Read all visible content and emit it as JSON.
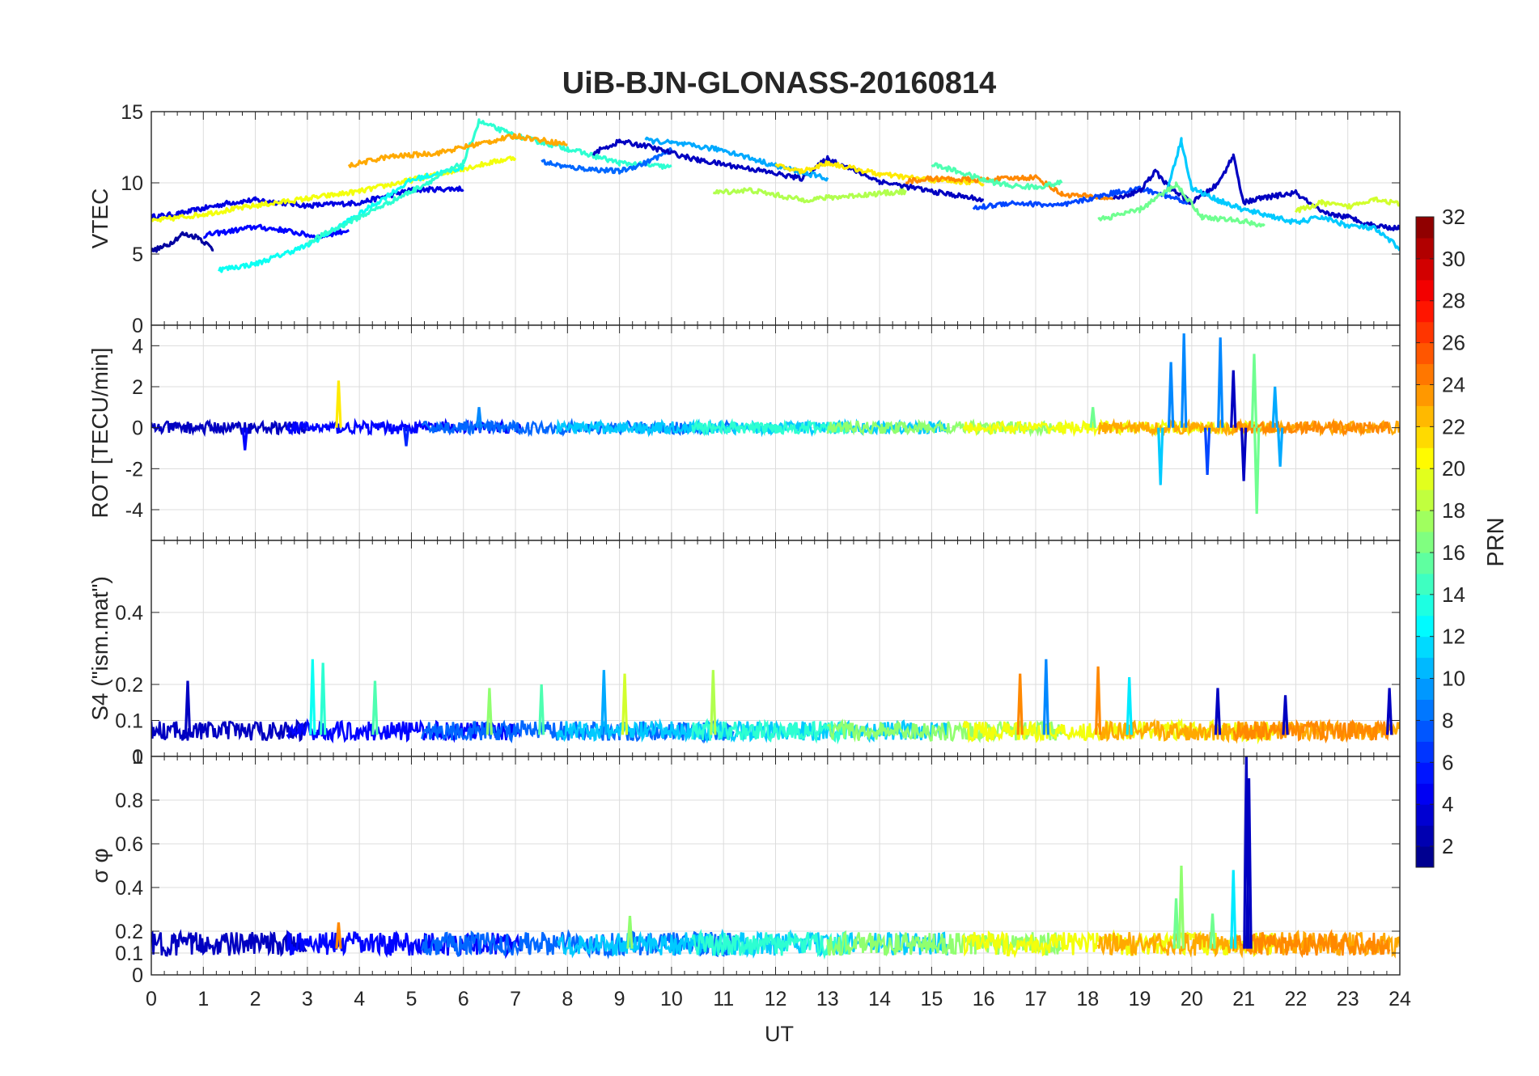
{
  "title": "UiB-BJN-GLONASS-20160814",
  "chart_data": [
    {
      "type": "line",
      "panel": "vtec",
      "ylabel": "VTEC",
      "ylim": [
        0,
        15
      ],
      "yticks": [
        0,
        5,
        10,
        15
      ],
      "xlim": [
        0,
        24
      ],
      "grid": true,
      "series": [
        {
          "color_value": 4,
          "x": [
            0,
            0.5,
            1,
            1.5,
            2,
            3,
            4,
            5,
            6
          ],
          "y": [
            7.6,
            7.8,
            8.2,
            8.6,
            8.8,
            8.4,
            8.6,
            9.5,
            9.6
          ]
        },
        {
          "color_value": 2,
          "x": [
            0,
            0.3,
            0.6,
            0.9,
            1.2
          ],
          "y": [
            5.2,
            5.6,
            6.4,
            6.2,
            5.3
          ]
        },
        {
          "color_value": 5,
          "x": [
            1,
            2,
            2.5,
            3.2,
            3.8
          ],
          "y": [
            6.3,
            6.9,
            6.7,
            6.2,
            6.7
          ]
        },
        {
          "color_value": 20,
          "x": [
            0,
            1,
            2,
            3,
            4,
            5,
            6,
            7
          ],
          "y": [
            7.3,
            7.8,
            8.4,
            8.9,
            9.4,
            10.2,
            11.0,
            11.8
          ]
        },
        {
          "color_value": 13,
          "x": [
            1.3,
            2,
            3,
            4,
            5,
            6
          ],
          "y": [
            3.9,
            4.3,
            5.6,
            7.8,
            10.2,
            11.1
          ]
        },
        {
          "color_value": 14,
          "x": [
            3,
            4,
            5,
            6,
            6.3,
            7,
            8,
            9,
            10
          ],
          "y": [
            5.8,
            7.6,
            9.4,
            11.4,
            14.3,
            13.3,
            12.4,
            11.4,
            11.1
          ]
        },
        {
          "color_value": 23,
          "x": [
            3.8,
            4.5,
            5.5,
            6.5,
            7,
            8
          ],
          "y": [
            11.2,
            11.8,
            12.1,
            12.9,
            13.3,
            12.7
          ]
        },
        {
          "color_value": 8,
          "x": [
            7.5,
            8,
            9,
            9.5,
            10
          ],
          "y": [
            11.5,
            11.1,
            10.8,
            11.4,
            12.3
          ]
        },
        {
          "color_value": 3,
          "x": [
            8.5,
            9,
            9.5,
            10.5,
            11.5,
            12.5,
            13,
            14,
            15,
            16
          ],
          "y": [
            12.1,
            12.9,
            12.6,
            11.6,
            11.0,
            10.3,
            11.7,
            10.1,
            9.4,
            8.8
          ]
        },
        {
          "color_value": 10,
          "x": [
            9.5,
            10,
            11,
            12,
            13
          ],
          "y": [
            13.0,
            12.8,
            12.3,
            11.2,
            10.3
          ]
        },
        {
          "color_value": 18,
          "x": [
            10.8,
            11.5,
            12.5,
            13.5,
            14.5
          ],
          "y": [
            9.3,
            9.5,
            8.8,
            9.1,
            9.4
          ]
        },
        {
          "color_value": 21,
          "x": [
            12,
            12.5,
            13,
            14,
            15,
            16
          ],
          "y": [
            11.2,
            10.8,
            11.4,
            10.6,
            10.2,
            10.0
          ]
        },
        {
          "color_value": 24,
          "x": [
            14.5,
            15,
            16,
            17,
            17.5,
            18.5
          ],
          "y": [
            10.1,
            10.3,
            10.2,
            10.4,
            9.2,
            8.9
          ]
        },
        {
          "color_value": 15,
          "x": [
            15,
            15.5,
            16,
            16.5,
            17,
            17.5
          ],
          "y": [
            11.3,
            10.8,
            10.2,
            9.8,
            9.7,
            10.0
          ]
        },
        {
          "color_value": 7,
          "x": [
            15.8,
            16.5,
            17.5,
            18.5,
            19,
            20
          ],
          "y": [
            8.2,
            8.6,
            8.4,
            9.3,
            9.6,
            8.6
          ]
        },
        {
          "color_value": 3,
          "x": [
            18.5,
            19,
            19.3,
            19.6,
            20,
            20.5,
            20.8,
            21,
            21.3,
            22,
            22.5,
            23,
            23.5,
            24
          ],
          "y": [
            8.9,
            9.4,
            10.8,
            9.6,
            8.6,
            9.9,
            11.9,
            8.6,
            8.9,
            9.3,
            7.9,
            7.6,
            7.0,
            6.8
          ]
        },
        {
          "color_value": 11,
          "x": [
            19.5,
            19.8,
            20,
            20.5,
            21,
            21.5,
            22,
            22.5,
            23,
            23.5,
            24
          ],
          "y": [
            9.2,
            13.0,
            9.6,
            8.8,
            8.1,
            7.7,
            7.2,
            7.6,
            7.0,
            6.8,
            5.4
          ]
        },
        {
          "color_value": 16,
          "x": [
            18.2,
            19,
            19.7,
            20.2,
            21,
            21.4
          ],
          "y": [
            7.4,
            8.1,
            9.9,
            7.6,
            7.3,
            7.0
          ]
        },
        {
          "color_value": 19,
          "x": [
            22,
            22.5,
            23,
            23.5,
            24
          ],
          "y": [
            8.0,
            8.6,
            8.3,
            8.9,
            8.5
          ]
        }
      ]
    },
    {
      "type": "line",
      "panel": "rot",
      "ylabel": "ROT [TECU/min]",
      "ylim": [
        -5.5,
        5
      ],
      "yticks": [
        -4,
        -2,
        0,
        2,
        4
      ],
      "xlim": [
        0,
        24
      ],
      "grid": true,
      "noise_amplitude": 0.3,
      "spikes": [
        {
          "x": 1.8,
          "y": -1.1,
          "color_value": 5
        },
        {
          "x": 3.6,
          "y": 2.3,
          "color_value": 21
        },
        {
          "x": 4.9,
          "y": -0.9,
          "color_value": 6
        },
        {
          "x": 6.3,
          "y": 1.0,
          "color_value": 9
        },
        {
          "x": 18.1,
          "y": 1.0,
          "color_value": 16
        },
        {
          "x": 19.4,
          "y": -2.8,
          "color_value": 11
        },
        {
          "x": 19.6,
          "y": 3.2,
          "color_value": 9
        },
        {
          "x": 19.85,
          "y": 4.6,
          "color_value": 9
        },
        {
          "x": 20.3,
          "y": -2.3,
          "color_value": 7
        },
        {
          "x": 20.55,
          "y": 4.4,
          "color_value": 9
        },
        {
          "x": 20.8,
          "y": 2.8,
          "color_value": 3
        },
        {
          "x": 21.0,
          "y": -2.6,
          "color_value": 3
        },
        {
          "x": 21.2,
          "y": 3.6,
          "color_value": 16
        },
        {
          "x": 21.25,
          "y": -4.2,
          "color_value": 16
        },
        {
          "x": 21.6,
          "y": 2.0,
          "color_value": 10
        },
        {
          "x": 21.7,
          "y": -1.9,
          "color_value": 10
        }
      ]
    },
    {
      "type": "line",
      "panel": "s4",
      "ylabel": "S4 (\"ism.mat\")",
      "ylim": [
        0,
        0.6
      ],
      "yticks": [
        0,
        0.1,
        0.2,
        0.4
      ],
      "xlim": [
        0,
        24
      ],
      "grid": true,
      "baseline": 0.06,
      "spikes": [
        {
          "x": 0.7,
          "y": 0.21,
          "color_value": 3
        },
        {
          "x": 3.1,
          "y": 0.27,
          "color_value": 13
        },
        {
          "x": 3.3,
          "y": 0.26,
          "color_value": 14
        },
        {
          "x": 4.3,
          "y": 0.21,
          "color_value": 15
        },
        {
          "x": 6.5,
          "y": 0.19,
          "color_value": 17
        },
        {
          "x": 7.5,
          "y": 0.2,
          "color_value": 15
        },
        {
          "x": 8.7,
          "y": 0.24,
          "color_value": 10
        },
        {
          "x": 9.1,
          "y": 0.23,
          "color_value": 19
        },
        {
          "x": 10.8,
          "y": 0.24,
          "color_value": 18
        },
        {
          "x": 16.7,
          "y": 0.23,
          "color_value": 24
        },
        {
          "x": 17.2,
          "y": 0.27,
          "color_value": 9
        },
        {
          "x": 18.2,
          "y": 0.25,
          "color_value": 24
        },
        {
          "x": 18.8,
          "y": 0.22,
          "color_value": 12
        },
        {
          "x": 20.5,
          "y": 0.19,
          "color_value": 3
        },
        {
          "x": 21.8,
          "y": 0.17,
          "color_value": 3
        },
        {
          "x": 23.8,
          "y": 0.19,
          "color_value": 3
        }
      ]
    },
    {
      "type": "line",
      "panel": "sigma_phi",
      "ylabel": "σ φ",
      "ylim": [
        0,
        1
      ],
      "yticks": [
        0,
        0.1,
        0.2,
        0.4,
        0.6,
        0.8,
        1
      ],
      "xlim": [
        0,
        24
      ],
      "grid": true,
      "baseline": 0.12,
      "spikes": [
        {
          "x": 3.6,
          "y": 0.24,
          "color_value": 24
        },
        {
          "x": 9.2,
          "y": 0.27,
          "color_value": 17
        },
        {
          "x": 19.7,
          "y": 0.35,
          "color_value": 16
        },
        {
          "x": 19.8,
          "y": 0.5,
          "color_value": 17
        },
        {
          "x": 20.4,
          "y": 0.28,
          "color_value": 16
        },
        {
          "x": 20.8,
          "y": 0.48,
          "color_value": 12
        },
        {
          "x": 21.05,
          "y": 1.0,
          "color_value": 3
        },
        {
          "x": 21.1,
          "y": 0.9,
          "color_value": 3
        }
      ]
    }
  ],
  "xaxis": {
    "label": "UT",
    "ticks": [
      "0",
      "1",
      "2",
      "3",
      "4",
      "5",
      "6",
      "7",
      "8",
      "9",
      "10",
      "11",
      "12",
      "13",
      "14",
      "15",
      "16",
      "17",
      "18",
      "19",
      "20",
      "21",
      "22",
      "23",
      "24"
    ]
  },
  "colorbar": {
    "label": "PRN",
    "min": 1,
    "max": 32,
    "ticks": [
      "2",
      "4",
      "6",
      "8",
      "10",
      "12",
      "14",
      "16",
      "18",
      "20",
      "22",
      "24",
      "26",
      "28",
      "30",
      "32"
    ],
    "colormap": "jet"
  }
}
